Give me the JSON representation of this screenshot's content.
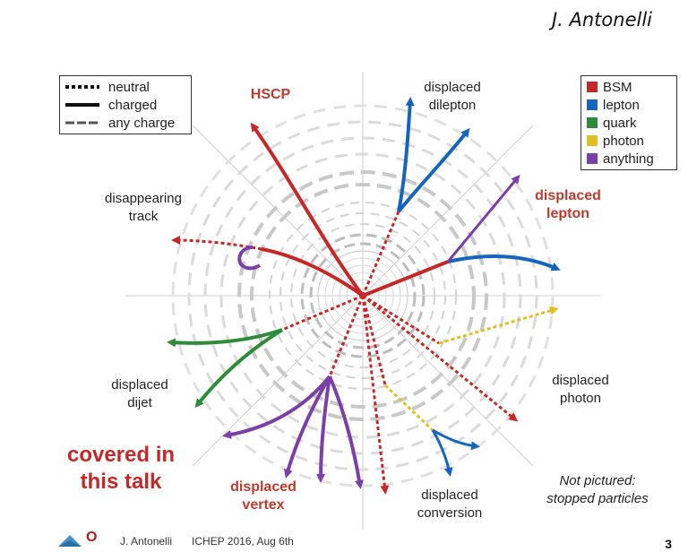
{
  "author_signature": "J. Antonelli",
  "line_legend": {
    "items": [
      {
        "style": "dotted",
        "label": "neutral"
      },
      {
        "style": "solid",
        "label": "charged"
      },
      {
        "style": "dashed",
        "label": "any charge"
      }
    ]
  },
  "color_legend": {
    "items": [
      {
        "color": "#c62828",
        "label": "BSM"
      },
      {
        "color": "#1565c0",
        "label": "lepton"
      },
      {
        "color": "#2e8b3a",
        "label": "quark"
      },
      {
        "color": "#e0c020",
        "label": "photon"
      },
      {
        "color": "#7b3fa8",
        "label": "anything"
      }
    ]
  },
  "signatures": {
    "hscp": "HSCP",
    "displaced_dilepton": "displaced\ndilepton",
    "disappearing_track": "disappearing\ntrack",
    "displaced_lepton": "displaced\nlepton",
    "displaced_dijet": "displaced\ndijet",
    "displaced_photon": "displaced\nphoton",
    "displaced_vertex": "displaced\nvertex",
    "displaced_conversion": "displaced\nconversion"
  },
  "covered_note": "covered in\nthis talk",
  "not_pictured": "Not pictured:\nstopped particles",
  "footer": {
    "author": "J. Antonelli",
    "conference": "ICHEP 2016, Aug 6th",
    "logo_text": "O"
  },
  "page_number": "3"
}
